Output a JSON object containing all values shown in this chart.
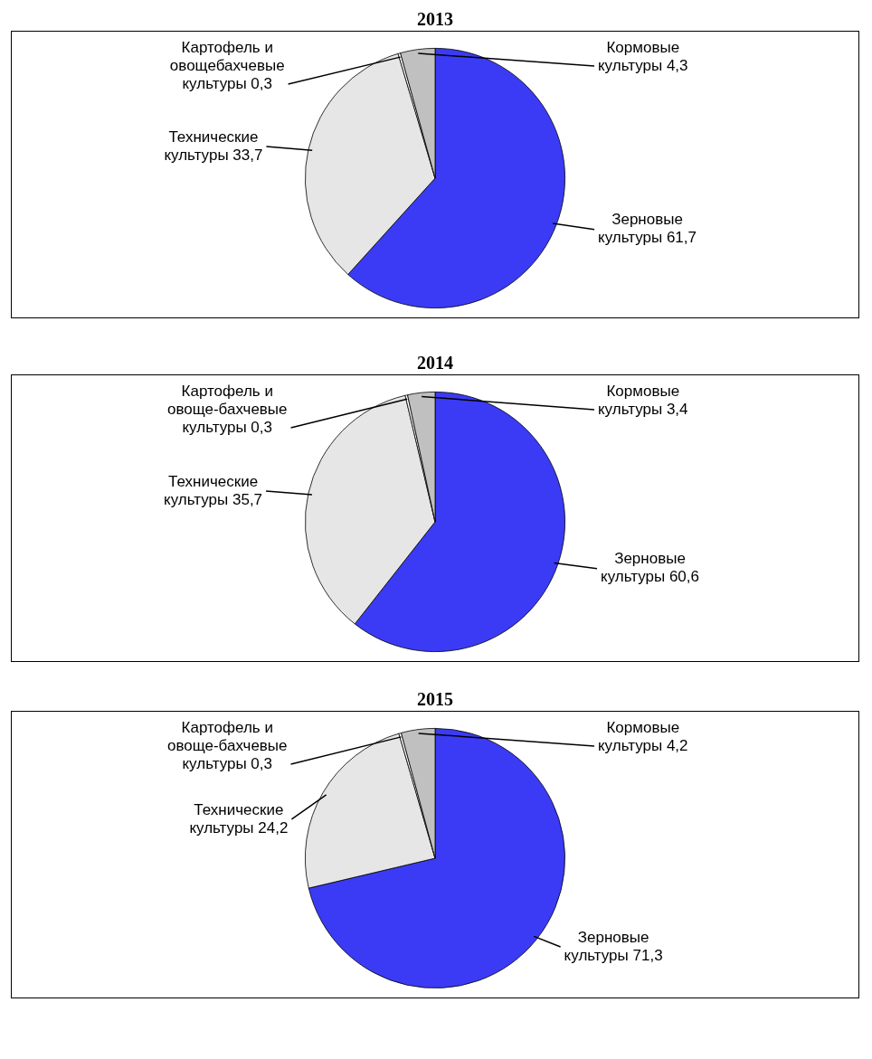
{
  "chart_data": [
    {
      "type": "pie",
      "title": "2013",
      "categories": [
        "Зерновые культуры",
        "Технические культуры",
        "Картофель и овощебахчевые культуры",
        "Кормовые культуры"
      ],
      "values": [
        61.7,
        33.7,
        0.3,
        4.3
      ],
      "colors": [
        "#3b3bf5",
        "#e6e6e6",
        "#ffffff",
        "#c0c0c0"
      ],
      "value_labels": [
        "61,7",
        "33,7",
        "0,3",
        "4,3"
      ]
    },
    {
      "type": "pie",
      "title": "2014",
      "categories": [
        "Зерновые культуры",
        "Технические культуры",
        "Картофель и овоще-бахчевые культуры",
        "Кормовые культуры"
      ],
      "values": [
        60.6,
        35.7,
        0.3,
        3.4
      ],
      "colors": [
        "#3b3bf5",
        "#e6e6e6",
        "#ffffff",
        "#c0c0c0"
      ],
      "value_labels": [
        "60,6",
        "35,7",
        "0,3",
        "3,4"
      ]
    },
    {
      "type": "pie",
      "title": "2015",
      "categories": [
        "Зерновые культуры",
        "Технические культуры",
        "Картофель и овоще-бахчевые культуры",
        "Кормовые культуры"
      ],
      "values": [
        71.3,
        24.2,
        0.3,
        4.2
      ],
      "colors": [
        "#3b3bf5",
        "#e6e6e6",
        "#ffffff",
        "#c0c0c0"
      ],
      "value_labels": [
        "71,3",
        "24,2",
        "0,3",
        "4,2"
      ]
    }
  ]
}
